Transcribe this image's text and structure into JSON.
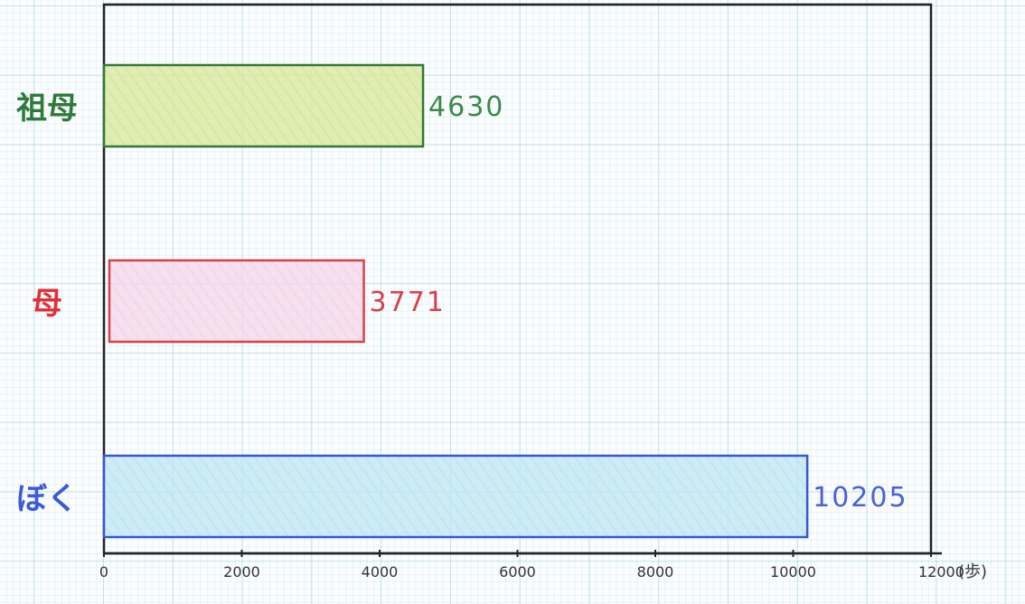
{
  "chart_data": {
    "type": "bar",
    "orientation": "horizontal",
    "categories": [
      "祖母",
      "母",
      "ぼく"
    ],
    "values": [
      4630,
      3771,
      10205
    ],
    "colors": {
      "祖母": {
        "stroke": "#2e7a3a",
        "fill": "#d9e89a",
        "label": "#2e7a3a",
        "value": "#3a8a4a"
      },
      "母": {
        "stroke": "#d8404a",
        "fill": "#f5d6ea",
        "label": "#e0303a",
        "value": "#d8404a"
      },
      "ぼく": {
        "stroke": "#3a55d8",
        "fill": "#bfe6f2",
        "label": "#3a5ad8",
        "value": "#4a60d8"
      }
    },
    "x_ticks": [
      "0",
      "2000",
      "4000",
      "6000",
      "8000",
      "10000",
      "12000"
    ],
    "x_unit_label": "(歩)",
    "xlim": [
      0,
      12000
    ],
    "grid": true
  }
}
